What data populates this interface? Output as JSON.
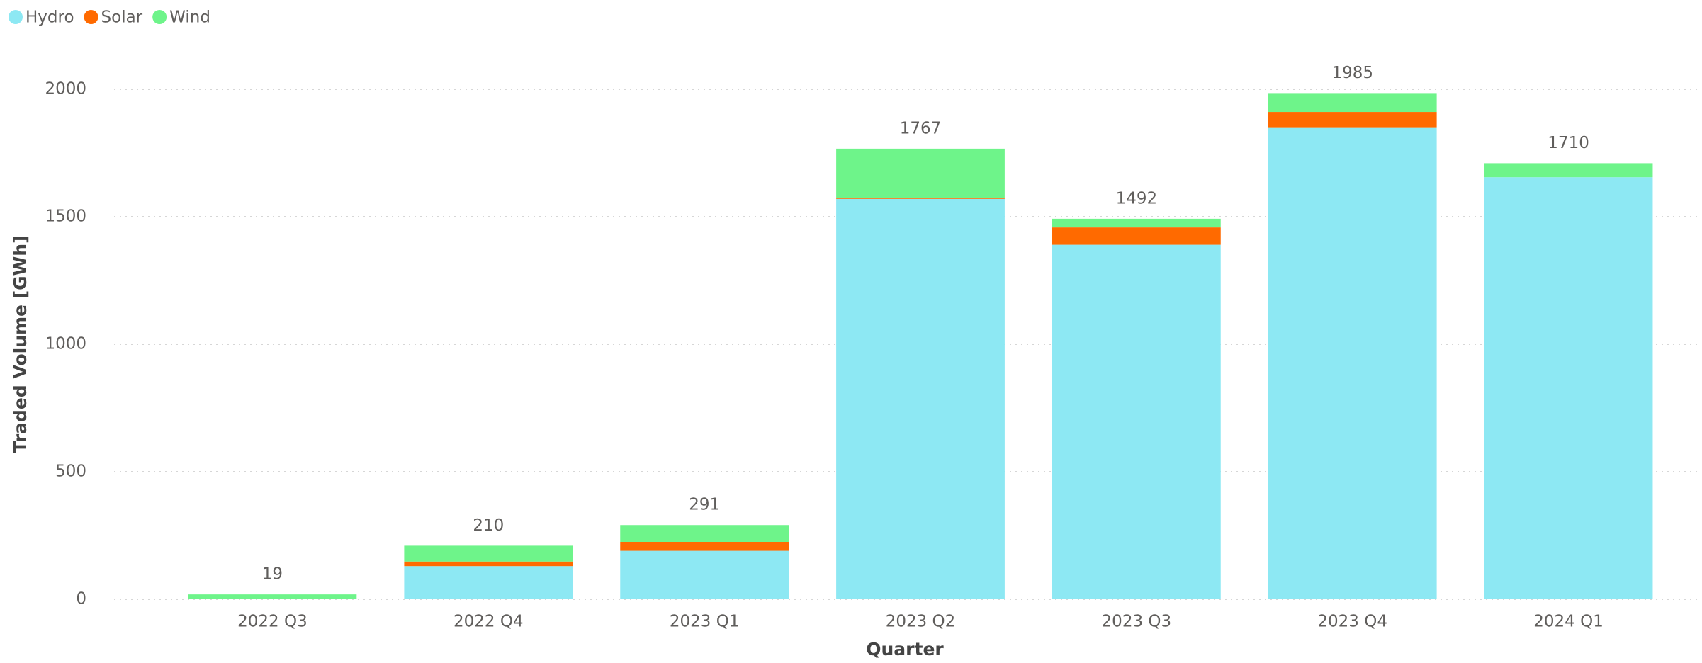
{
  "chart_data": {
    "type": "stacked-bar",
    "x_label": "Quarter",
    "y_label": "Traded Volume [GWh]",
    "categories": [
      "2022 Q3",
      "2022 Q4",
      "2023 Q1",
      "2023 Q2",
      "2023 Q3",
      "2023 Q4",
      "2024 Q1"
    ],
    "series": [
      {
        "name": "Hydro",
        "color": "#8de8f3",
        "values": [
          0,
          130,
          190,
          1570,
          1390,
          1851,
          1655
        ]
      },
      {
        "name": "Solar",
        "color": "#ff6a00",
        "values": [
          0,
          18,
          35,
          5,
          68,
          60,
          0
        ]
      },
      {
        "name": "Wind",
        "color": "#6ef48a",
        "values": [
          19,
          62,
          66,
          192,
          34,
          74,
          55
        ]
      }
    ],
    "totals": [
      19,
      210,
      291,
      1767,
      1492,
      1985,
      1710
    ],
    "ylim": [
      0,
      2000
    ],
    "yticks": [
      0,
      500,
      1000,
      1500,
      2000
    ],
    "grid": true,
    "legend": "top-left"
  }
}
